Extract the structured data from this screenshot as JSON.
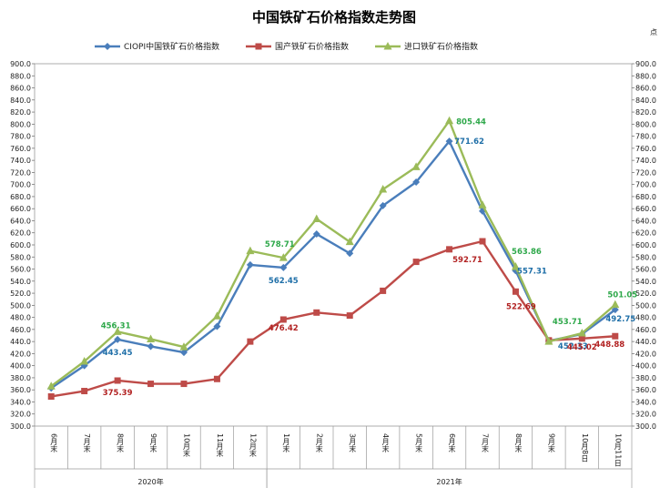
{
  "chart_data": {
    "type": "line",
    "title": "中国铁矿石价格指数走势图",
    "right_axis_unit": "点",
    "ylim": [
      300,
      900
    ],
    "ytick_step": 20,
    "ytick_labels": [
      "300.0",
      "320.0",
      "340.0",
      "360.0",
      "380.0",
      "400.0",
      "420.0",
      "440.0",
      "460.0",
      "480.0",
      "500.0",
      "520.0",
      "540.0",
      "560.0",
      "580.0",
      "600.0",
      "620.0",
      "640.0",
      "660.0",
      "680.0",
      "700.0",
      "720.0",
      "740.0",
      "760.0",
      "780.0",
      "800.0",
      "820.0",
      "840.0",
      "860.0",
      "880.0",
      "900.0"
    ],
    "categories": [
      "6月末",
      "7月末",
      "8月末",
      "9月末",
      "10月末",
      "11月末",
      "12月末",
      "1月末",
      "2月末",
      "3月末",
      "4月末",
      "5月末",
      "6月末",
      "7月末",
      "8月末",
      "9月末",
      "10月8日",
      "10月11日"
    ],
    "groups": [
      {
        "label": "2020年",
        "start": 0,
        "end": 6
      },
      {
        "label": "2021年",
        "start": 7,
        "end": 17
      }
    ],
    "legend_position": "top",
    "series": [
      {
        "name": "CIOPI中国铁矿石价格指数",
        "color": "#4a7ebb",
        "marker": "diamond",
        "values": [
          363,
          400,
          443.45,
          432,
          422,
          465,
          567,
          562.45,
          618,
          586,
          665,
          704,
          771.62,
          656,
          557.31,
          441,
          452.33,
          492.75
        ],
        "labels": {
          "2": "443.45",
          "7": "562.45",
          "12": "771.62",
          "14": "557.31",
          "16": "452.33",
          "17": "492.75"
        }
      },
      {
        "name": "国产铁矿石价格指数",
        "color": "#be4b48",
        "marker": "square",
        "values": [
          349,
          358,
          375.39,
          370,
          370,
          378,
          440,
          476.42,
          488,
          483,
          524,
          572,
          592.71,
          606,
          522.69,
          442,
          445.02,
          448.88
        ],
        "labels": {
          "2": "375.39",
          "7": "476.42",
          "12": "592.71",
          "14": "522.69",
          "16": "445.02",
          "17": "448.88"
        }
      },
      {
        "name": "进口铁矿石价格指数",
        "color": "#9bbb59",
        "marker": "triangle",
        "values": [
          366,
          407,
          456.31,
          444,
          431,
          482,
          590,
          578.71,
          643,
          605,
          692,
          729,
          805.44,
          666,
          563.86,
          440,
          453.71,
          501.05
        ],
        "labels": {
          "2": "456.31",
          "7": "578.71",
          "12": "805.44",
          "14": "563.86",
          "16": "453.71",
          "17": "501.05"
        }
      }
    ],
    "label_colors": [
      "#1f6fa8",
      "#b22222",
      "#2ea84a"
    ]
  }
}
